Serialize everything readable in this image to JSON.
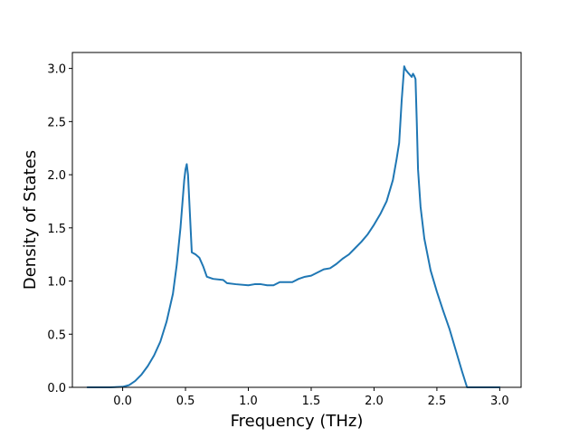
{
  "chart_data": {
    "type": "line",
    "title": "",
    "xlabel": "Frequency (THz)",
    "ylabel": "Density of States",
    "xlim": [
      -0.4,
      3.17
    ],
    "ylim": [
      0,
      3.15
    ],
    "grid": false,
    "legend": "none",
    "x_ticks": [
      0.0,
      0.5,
      1.0,
      1.5,
      2.0,
      2.5,
      3.0
    ],
    "y_ticks": [
      0.0,
      0.5,
      1.0,
      1.5,
      2.0,
      2.5,
      3.0
    ],
    "x_tick_labels": [
      "0.0",
      "0.5",
      "1.0",
      "1.5",
      "2.0",
      "2.5",
      "3.0"
    ],
    "y_tick_labels": [
      "0.0",
      "0.5",
      "1.0",
      "1.5",
      "2.0",
      "2.5",
      "3.0"
    ],
    "series": [
      {
        "color": "#1f77b4",
        "x": [
          -0.28,
          -0.1,
          0.0,
          0.05,
          0.1,
          0.15,
          0.2,
          0.25,
          0.3,
          0.35,
          0.4,
          0.43,
          0.46,
          0.48,
          0.49,
          0.5,
          0.51,
          0.52,
          0.55,
          0.58,
          0.61,
          0.64,
          0.67,
          0.72,
          0.8,
          0.83,
          0.9,
          1.0,
          1.05,
          1.1,
          1.15,
          1.2,
          1.25,
          1.3,
          1.35,
          1.4,
          1.45,
          1.5,
          1.55,
          1.6,
          1.65,
          1.7,
          1.75,
          1.8,
          1.85,
          1.9,
          1.95,
          2.0,
          2.05,
          2.1,
          2.15,
          2.18,
          2.2,
          2.22,
          2.24,
          2.25,
          2.27,
          2.3,
          2.31,
          2.32,
          2.33,
          2.34,
          2.35,
          2.37,
          2.4,
          2.45,
          2.5,
          2.55,
          2.6,
          2.65,
          2.7,
          2.74,
          2.76,
          2.9,
          3.0
        ],
        "y": [
          0.0,
          0.0,
          0.005,
          0.02,
          0.06,
          0.12,
          0.2,
          0.3,
          0.43,
          0.62,
          0.88,
          1.15,
          1.5,
          1.8,
          1.95,
          2.05,
          2.1,
          2.0,
          1.27,
          1.25,
          1.22,
          1.14,
          1.04,
          1.02,
          1.01,
          0.98,
          0.97,
          0.96,
          0.97,
          0.97,
          0.96,
          0.96,
          0.99,
          0.99,
          0.99,
          1.02,
          1.04,
          1.05,
          1.08,
          1.11,
          1.12,
          1.16,
          1.21,
          1.25,
          1.31,
          1.37,
          1.44,
          1.53,
          1.63,
          1.75,
          1.95,
          2.15,
          2.3,
          2.7,
          3.02,
          2.99,
          2.96,
          2.92,
          2.95,
          2.93,
          2.9,
          2.5,
          2.05,
          1.7,
          1.4,
          1.1,
          0.9,
          0.72,
          0.55,
          0.35,
          0.15,
          0.0,
          0.0,
          0.0,
          0.0
        ]
      }
    ]
  }
}
